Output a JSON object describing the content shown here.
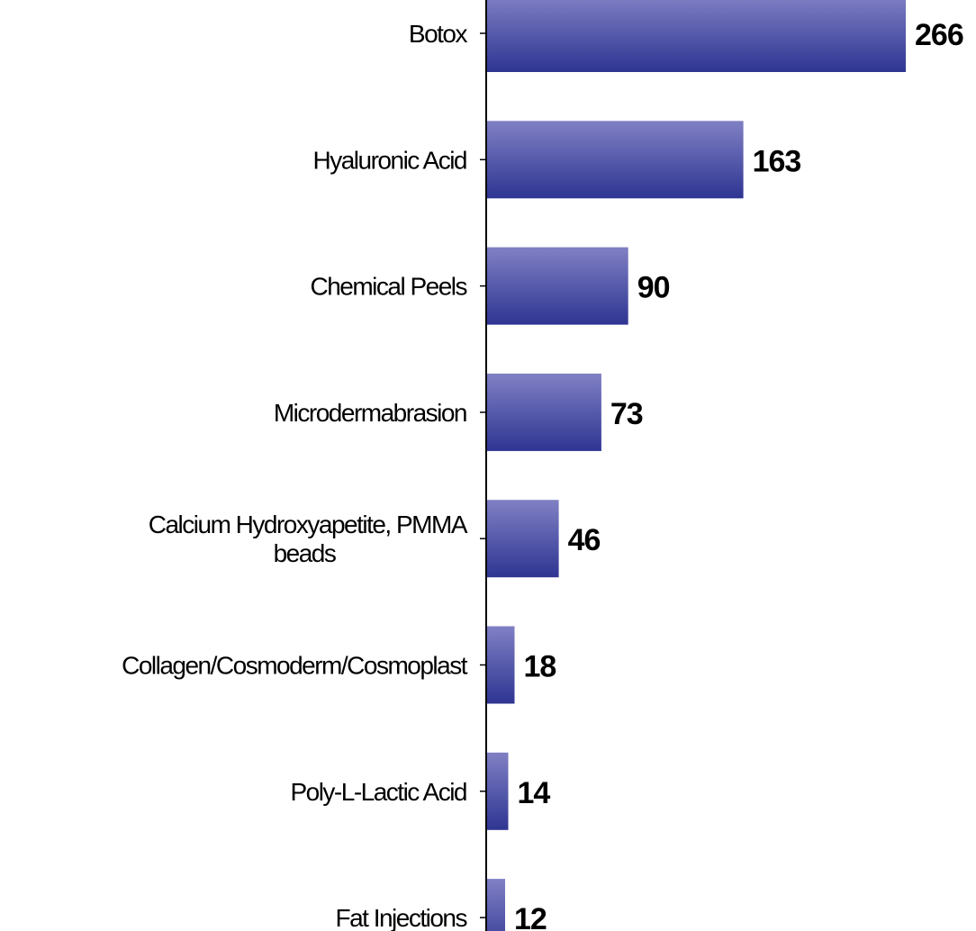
{
  "chart_data": {
    "type": "bar",
    "orientation": "horizontal",
    "categories": [
      [
        "Botox"
      ],
      [
        "Hyaluronic Acid"
      ],
      [
        "Chemical Peels"
      ],
      [
        "Microdermabrasion"
      ],
      [
        "Calcium Hydroxyapetite, PMMA",
        "beads"
      ],
      [
        "Collagen/Cosmoderm/Cosmoplast"
      ],
      [
        "Poly-L-Lactic Acid"
      ],
      [
        "Fat Injections"
      ]
    ],
    "values": [
      266,
      163,
      90,
      73,
      46,
      18,
      14,
      12
    ],
    "value_labels": [
      "266",
      "163",
      "90",
      "73",
      "46",
      "18",
      "14",
      "12"
    ],
    "xlim": [
      0,
      266
    ],
    "grid": false,
    "legend": "none",
    "colors": {
      "bar_light": "#8080c4",
      "bar_dark": "#2e3592",
      "axis": "#000000"
    }
  }
}
